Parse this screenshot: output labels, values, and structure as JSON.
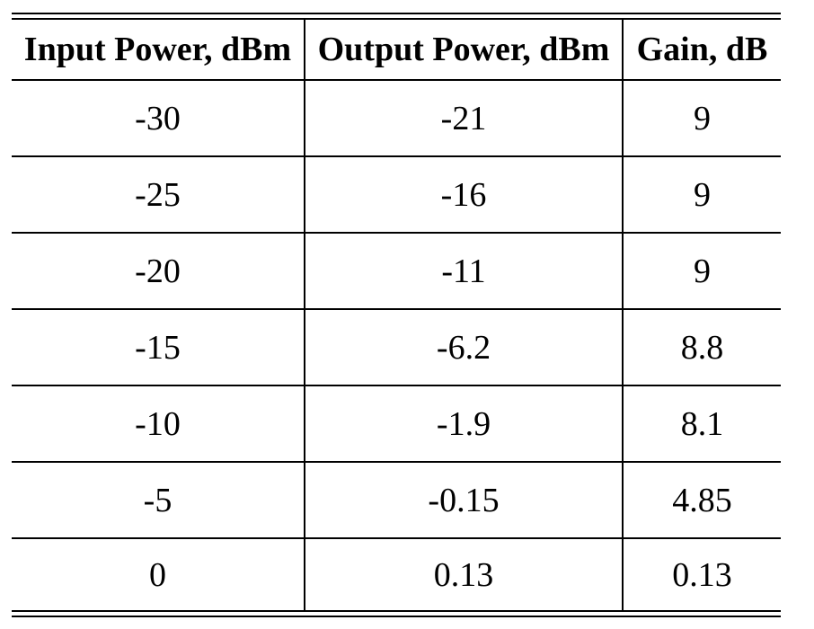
{
  "chart_data": {
    "type": "table",
    "title": "",
    "columns": [
      "Input Power, dBm",
      "Output Power, dBm",
      "Gain, dB"
    ],
    "rows": [
      [
        "-30",
        "-21",
        "9"
      ],
      [
        "-25",
        "-16",
        "9"
      ],
      [
        "-20",
        "-11",
        "9"
      ],
      [
        "-15",
        "-6.2",
        "8.8"
      ],
      [
        "-10",
        "-1.9",
        "8.1"
      ],
      [
        "-5",
        "-0.15",
        "4.85"
      ],
      [
        "0",
        "0.13",
        "0.13"
      ]
    ],
    "layout": {
      "top_rule": "double",
      "bottom_rule": "double",
      "row_rules": "single",
      "column_separators": "single-vertical",
      "outer_side_borders": false
    }
  },
  "colors": {
    "rule": "#000000",
    "text": "#000000",
    "background": "#ffffff"
  }
}
